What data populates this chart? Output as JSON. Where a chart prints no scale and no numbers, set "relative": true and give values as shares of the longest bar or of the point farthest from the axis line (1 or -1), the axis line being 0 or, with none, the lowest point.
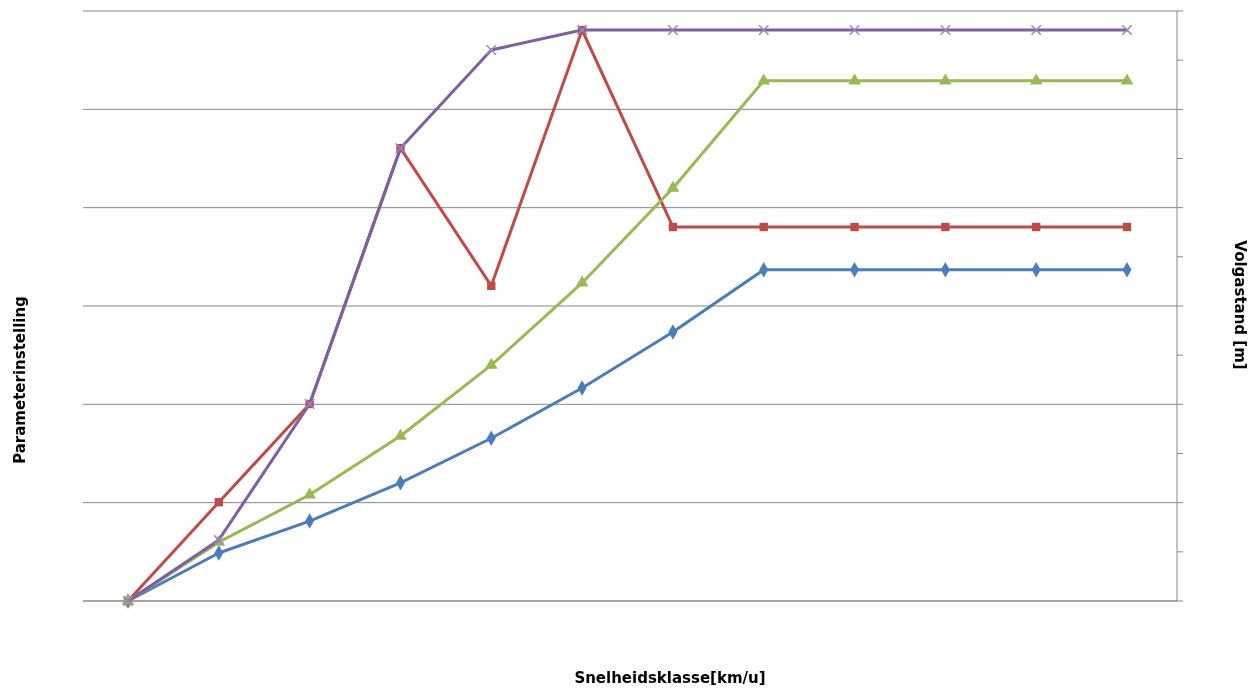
{
  "chart_data": {
    "type": "line",
    "relative": true,
    "xlabel": "Snelheidsklasse[km/u]",
    "ylabel": "Parameterinstelling",
    "y2label": "Volgastand [m]",
    "grid": "y",
    "categories": [
      null,
      null,
      null,
      null,
      null,
      null,
      null,
      null,
      null,
      null,
      null,
      null
    ],
    "series": [
      {
        "color": "#4a7ebb",
        "marker": "diamond",
        "values": [
          0,
          0.084,
          0.14,
          0.207,
          0.285,
          0.373,
          0.471,
          0.58,
          0.58,
          0.58,
          0.58,
          0.58
        ]
      },
      {
        "color": "#be4b48",
        "marker": "square",
        "values": [
          0,
          0.173,
          0.345,
          0.793,
          0.552,
          1,
          0.655,
          0.655,
          0.655,
          0.655,
          0.655,
          0.655
        ]
      },
      {
        "color": "#98b954",
        "marker": "triangle",
        "values": [
          0,
          0.103,
          0.186,
          0.289,
          0.413,
          0.557,
          0.723,
          0.911,
          0.911,
          0.911,
          0.911,
          0.911
        ]
      },
      {
        "color": "#7d60a0",
        "marker": "cross",
        "values": [
          0,
          0.107,
          0.345,
          0.793,
          0.965,
          1,
          1,
          1,
          1,
          1,
          1,
          1
        ]
      }
    ]
  }
}
